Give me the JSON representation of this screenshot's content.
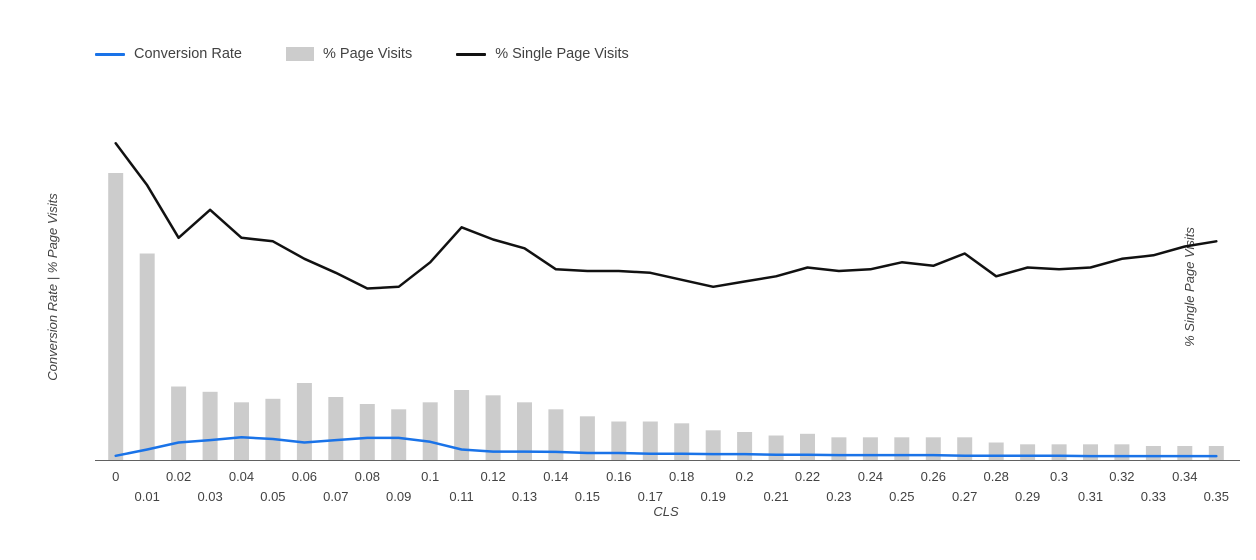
{
  "legend": {
    "items": [
      {
        "label": "Conversion Rate",
        "type": "line",
        "color": "#1a73e8"
      },
      {
        "label": "% Page Visits",
        "type": "bar",
        "color": "#cccccc"
      },
      {
        "label": "% Single Page Visits",
        "type": "line",
        "color": "#111111"
      }
    ]
  },
  "axes": {
    "x_label": "CLS",
    "y_left_label": "Conversion Rate | % Page Visits",
    "y_right_label": "% Single Page Visits"
  },
  "chart_data": {
    "type": "bar",
    "title": "",
    "xlabel": "CLS",
    "ylabel_left": "Conversion Rate | % Page Visits",
    "ylabel_right": "% Single Page Visits",
    "ylim": [
      0,
      100
    ],
    "grid": false,
    "legend_position": "top-left",
    "categories": [
      "0",
      "0.01",
      "0.02",
      "0.03",
      "0.04",
      "0.05",
      "0.06",
      "0.07",
      "0.08",
      "0.09",
      "0.1",
      "0.11",
      "0.12",
      "0.13",
      "0.14",
      "0.15",
      "0.16",
      "0.17",
      "0.18",
      "0.19",
      "0.2",
      "0.21",
      "0.22",
      "0.23",
      "0.24",
      "0.25",
      "0.26",
      "0.27",
      "0.28",
      "0.29",
      "0.3",
      "0.31",
      "0.32",
      "0.33",
      "0.34",
      "0.35"
    ],
    "series": [
      {
        "name": "% Page Visits",
        "type": "bar",
        "axis": "left",
        "color": "#cccccc",
        "values": [
          82,
          59,
          21,
          19.5,
          16.5,
          17.5,
          22,
          18,
          16,
          14.5,
          16.5,
          20,
          18.5,
          16.5,
          14.5,
          12.5,
          11,
          11,
          10.5,
          8.5,
          8,
          7,
          7.5,
          6.5,
          6.5,
          6.5,
          6.5,
          6.5,
          5,
          4.5,
          4.5,
          4.5,
          4.5,
          4,
          4,
          4
        ]
      },
      {
        "name": "Conversion Rate",
        "type": "line",
        "axis": "left",
        "color": "#1a73e8",
        "values": [
          1.2,
          3,
          5,
          5.7,
          6.5,
          6,
          5,
          5.7,
          6.3,
          6.3,
          5.2,
          3,
          2.4,
          2.4,
          2.3,
          2,
          2,
          1.8,
          1.8,
          1.7,
          1.7,
          1.5,
          1.5,
          1.4,
          1.4,
          1.4,
          1.4,
          1.2,
          1.2,
          1.2,
          1.2,
          1.1,
          1.1,
          1.1,
          1.1,
          1.1
        ]
      },
      {
        "name": "% Single Page Visits",
        "type": "line",
        "axis": "right",
        "color": "#111111",
        "values": [
          90.5,
          78.5,
          63.5,
          71.5,
          63.5,
          62.5,
          57.5,
          53.5,
          49,
          49.5,
          56.5,
          66.5,
          63,
          60.5,
          54.5,
          54,
          54,
          53.5,
          51.5,
          49.5,
          51,
          52.5,
          55,
          54,
          54.5,
          56.5,
          55.5,
          59,
          52.5,
          55,
          54.5,
          55,
          57.5,
          58.5,
          61,
          62.5
        ]
      }
    ]
  }
}
